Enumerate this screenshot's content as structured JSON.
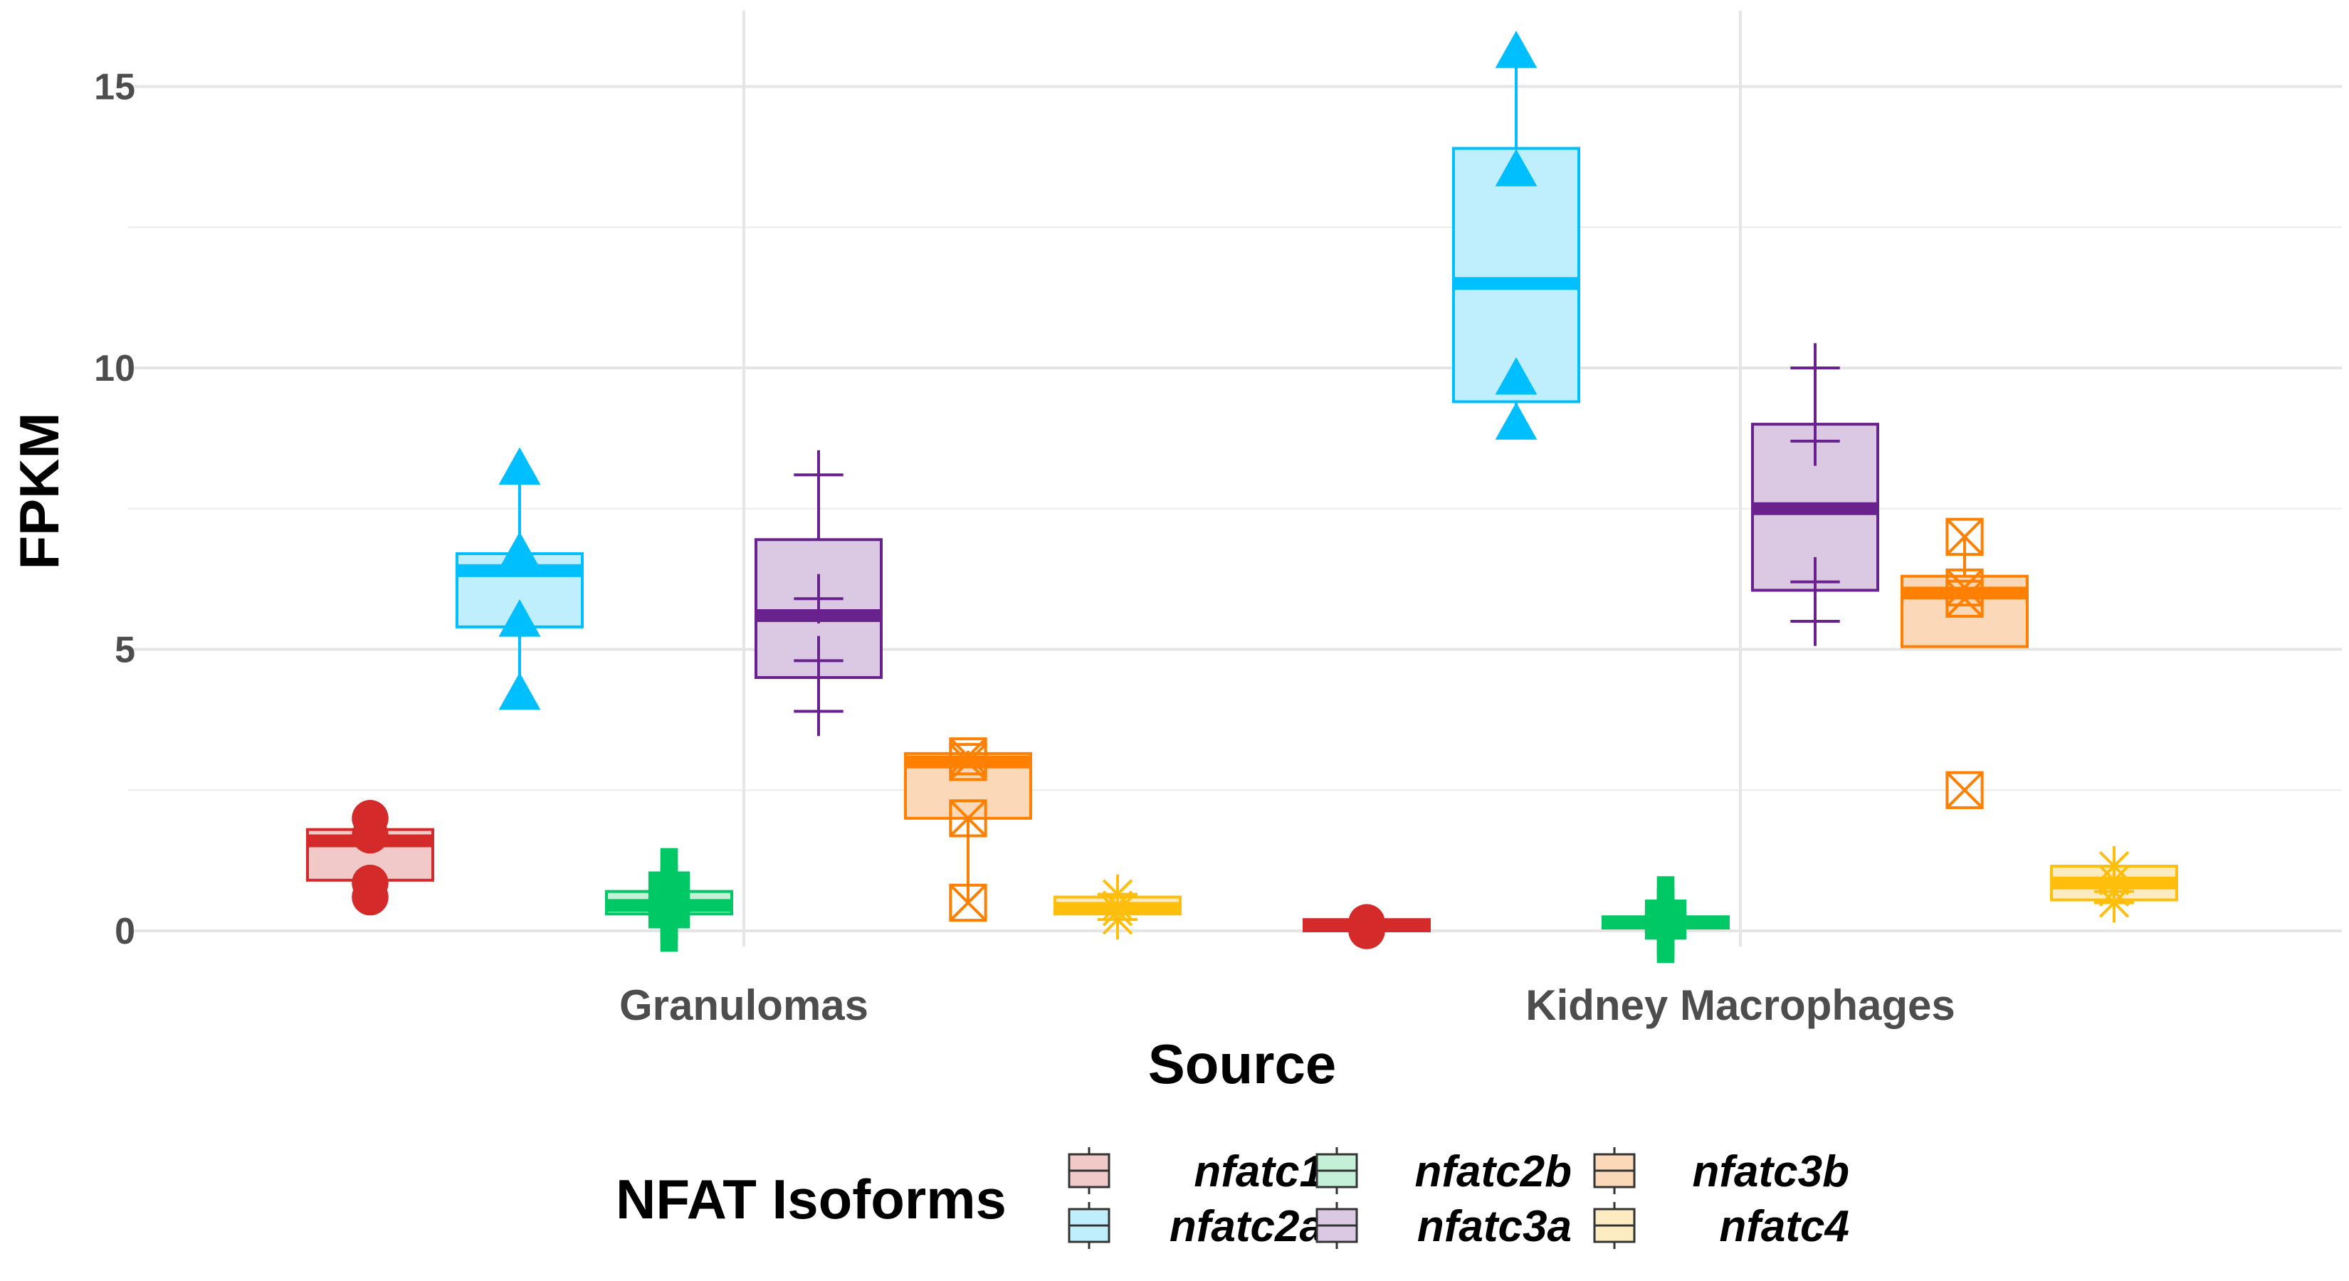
{
  "chart_data": {
    "type": "boxplot",
    "xlabel": "Source",
    "ylabel": "FPKM",
    "ylim": [
      -0.8,
      16.3
    ],
    "yticks": [
      0,
      5,
      10,
      15
    ],
    "grid": true,
    "legend": {
      "title": "NFAT Isoforms",
      "position": "bottom"
    },
    "categories": [
      "Granulomas",
      "Kidney Macrophages"
    ],
    "series": [
      {
        "name": "nfatc1",
        "color": "#d42a2a",
        "fill": "#f2c9c9",
        "marker": "circle",
        "boxes": [
          {
            "q1": 0.9,
            "median": 1.6,
            "q3": 1.8,
            "whisker_low": 0.9,
            "whisker_high": 1.8,
            "points": [
              2.0,
              1.7,
              0.85,
              0.6
            ]
          },
          {
            "q1": 0.0,
            "median": 0.1,
            "q3": 0.2,
            "whisker_low": 0.0,
            "whisker_high": 0.2,
            "points": [
              0.15,
              0.1,
              0.05,
              0.0
            ]
          }
        ]
      },
      {
        "name": "nfatc2a",
        "color": "#00bfff",
        "fill": "#bfeffc",
        "marker": "triangle",
        "boxes": [
          {
            "q1": 5.4,
            "median": 6.4,
            "q3": 6.7,
            "whisker_low": 4.2,
            "whisker_high": 8.2,
            "points": [
              8.2,
              6.7,
              5.5,
              4.2
            ]
          },
          {
            "q1": 9.4,
            "median": 11.5,
            "q3": 13.9,
            "whisker_low": 9.0,
            "whisker_high": 15.6,
            "points": [
              15.6,
              13.5,
              9.8,
              9.0
            ]
          }
        ]
      },
      {
        "name": "nfatc2b",
        "color": "#00c864",
        "fill": "#c4f0d8",
        "marker": "plus",
        "boxes": [
          {
            "q1": 0.3,
            "median": 0.45,
            "q3": 0.7,
            "whisker_low": 0.3,
            "whisker_high": 0.7,
            "points": [
              0.9,
              0.6,
              0.4,
              0.2
            ]
          },
          {
            "q1": 0.05,
            "median": 0.15,
            "q3": 0.25,
            "whisker_low": 0.05,
            "whisker_high": 0.25,
            "points": [
              0.4,
              0.2,
              0.1,
              0.0
            ]
          }
        ]
      },
      {
        "name": "nfatc3a",
        "color": "#69228d",
        "fill": "#dbc9e3",
        "marker": "thin-plus",
        "boxes": [
          {
            "q1": 4.5,
            "median": 5.6,
            "q3": 6.95,
            "whisker_low": 3.6,
            "whisker_high": 8.4,
            "points": [
              8.1,
              5.9,
              4.8,
              3.9
            ]
          },
          {
            "q1": 6.05,
            "median": 7.5,
            "q3": 9.0,
            "whisker_low": 5.1,
            "whisker_high": 10.3,
            "points": [
              10.0,
              8.7,
              6.2,
              5.5
            ]
          }
        ]
      },
      {
        "name": "nfatc3b",
        "color": "#ff7f00",
        "fill": "#fbd9b8",
        "marker": "boxed-x",
        "boxes": [
          {
            "q1": 2.0,
            "median": 3.0,
            "q3": 3.15,
            "whisker_low": 0.5,
            "whisker_high": 3.2,
            "points": [
              3.1,
              3.0,
              2.0,
              0.5
            ]
          },
          {
            "q1": 5.05,
            "median": 6.0,
            "q3": 6.3,
            "whisker_low": 5.05,
            "whisker_high": 7.0,
            "points": [
              7.0,
              6.1,
              5.9,
              2.5
            ]
          }
        ]
      },
      {
        "name": "nfatc4",
        "color": "#ffbe0b",
        "fill": "#fdecc2",
        "marker": "asterisk",
        "boxes": [
          {
            "q1": 0.3,
            "median": 0.4,
            "q3": 0.6,
            "whisker_low": 0.3,
            "whisker_high": 0.6,
            "points": [
              0.65,
              0.45,
              0.35,
              0.2
            ]
          },
          {
            "q1": 0.55,
            "median": 0.85,
            "q3": 1.15,
            "whisker_low": 0.55,
            "whisker_high": 1.15,
            "points": [
              1.15,
              0.9,
              0.7,
              0.5
            ]
          }
        ]
      }
    ]
  }
}
